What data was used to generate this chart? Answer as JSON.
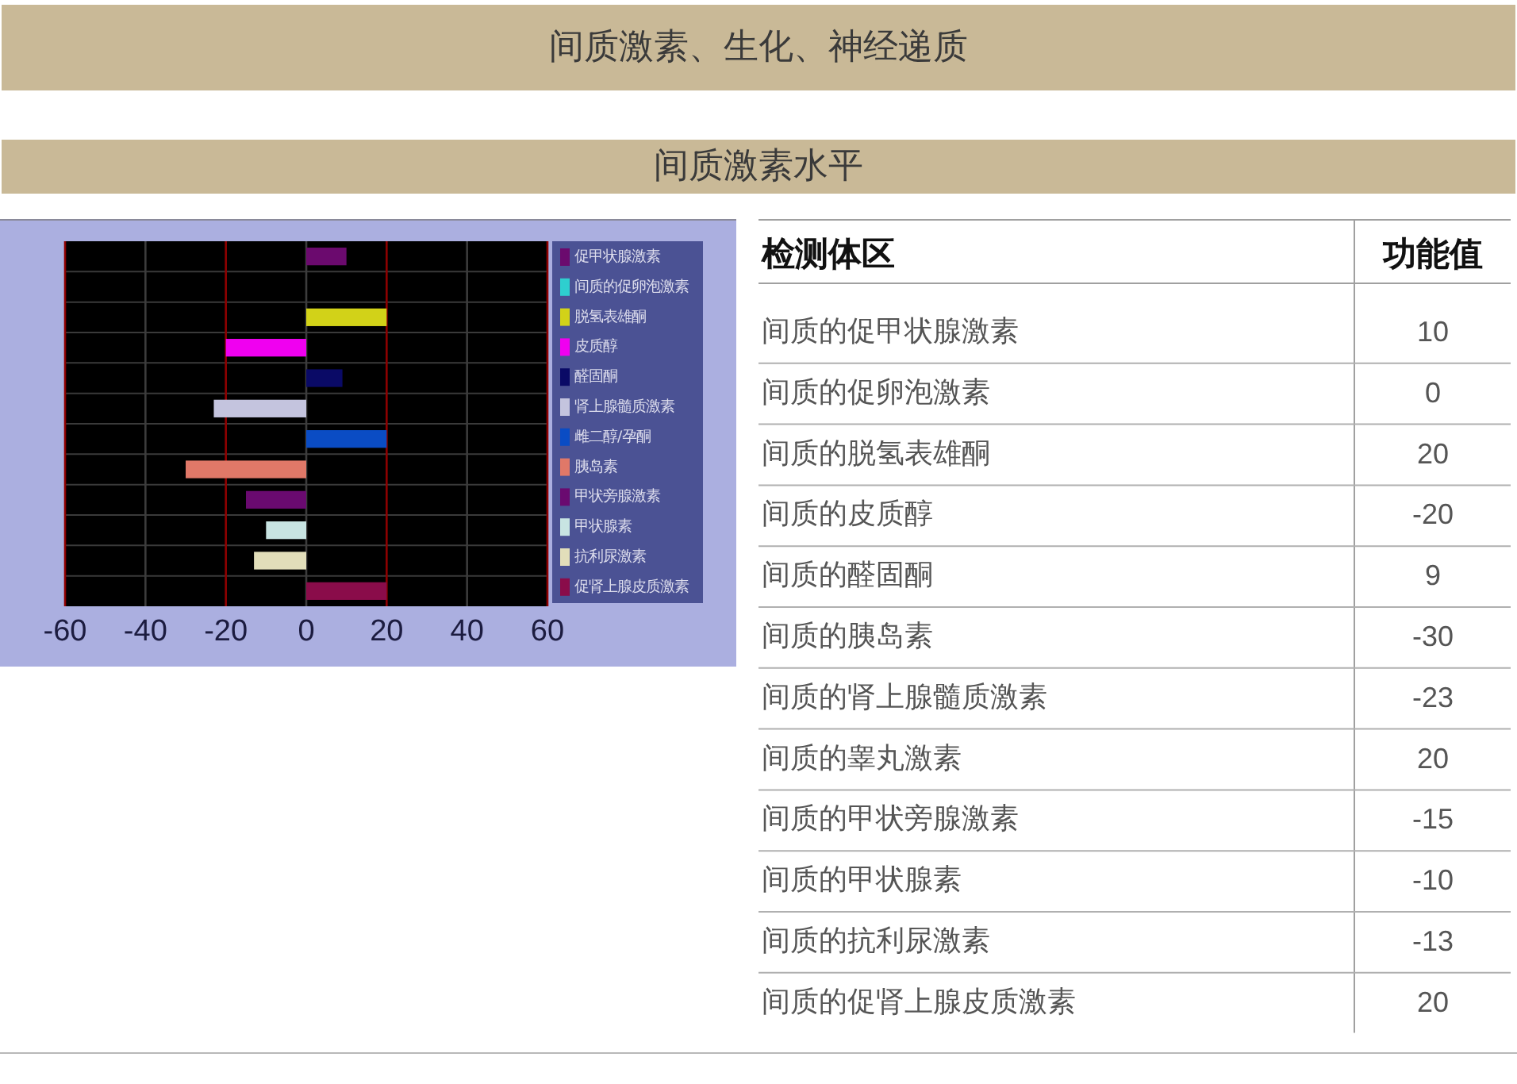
{
  "chart_data": [
    {
      "type": "bar",
      "orientation": "horizontal",
      "title": "间质激素、生化、神经递质",
      "categories": [
        "促甲状腺激素",
        "间质的促卵泡激素",
        "脱氢表雄酮",
        "皮质醇",
        "醛固酮",
        "肾上腺髓质激素",
        "雌二醇/孕酮",
        "胰岛素",
        "甲状旁腺激素",
        "甲状腺素",
        "抗利尿激素",
        "促肾上腺皮质激素"
      ],
      "values": [
        10,
        0,
        20,
        -20,
        9,
        -23,
        20,
        -30,
        -15,
        -10,
        -13,
        20
      ],
      "colors": [
        "#6b0a6e",
        "#2ecfcf",
        "#d2d218",
        "#f000f0",
        "#0a0a66",
        "#c4c4de",
        "#0a4cc4",
        "#e07868",
        "#6a0a70",
        "#c8e4e2",
        "#e2deba",
        "#8a0c4a"
      ],
      "xlim": [
        -60,
        60
      ],
      "xticks": [
        -60,
        -40,
        -20,
        0,
        20,
        40,
        60
      ],
      "grid": true
    },
    {
      "type": "other",
      "title": "间质激素水平",
      "annotations": [
        "检测体区",
        "功能值"
      ],
      "categories": [
        "间质的促甲状腺激素",
        "间质的促卵泡激素",
        "间质的脱氢表雄酮",
        "间质的皮质醇",
        "间质的醛固酮",
        "间质的胰岛素",
        "间质的肾上腺髓质激素",
        "间质的睾丸激素",
        "间质的甲状旁腺激素",
        "间质的甲状腺素",
        "间质的抗利尿激素",
        "间质的促肾上腺皮质激素"
      ],
      "values": [
        10,
        0,
        20,
        -20,
        9,
        -30,
        -23,
        20,
        -15,
        -10,
        -13,
        20
      ],
      "data_labels": true
    }
  ]
}
